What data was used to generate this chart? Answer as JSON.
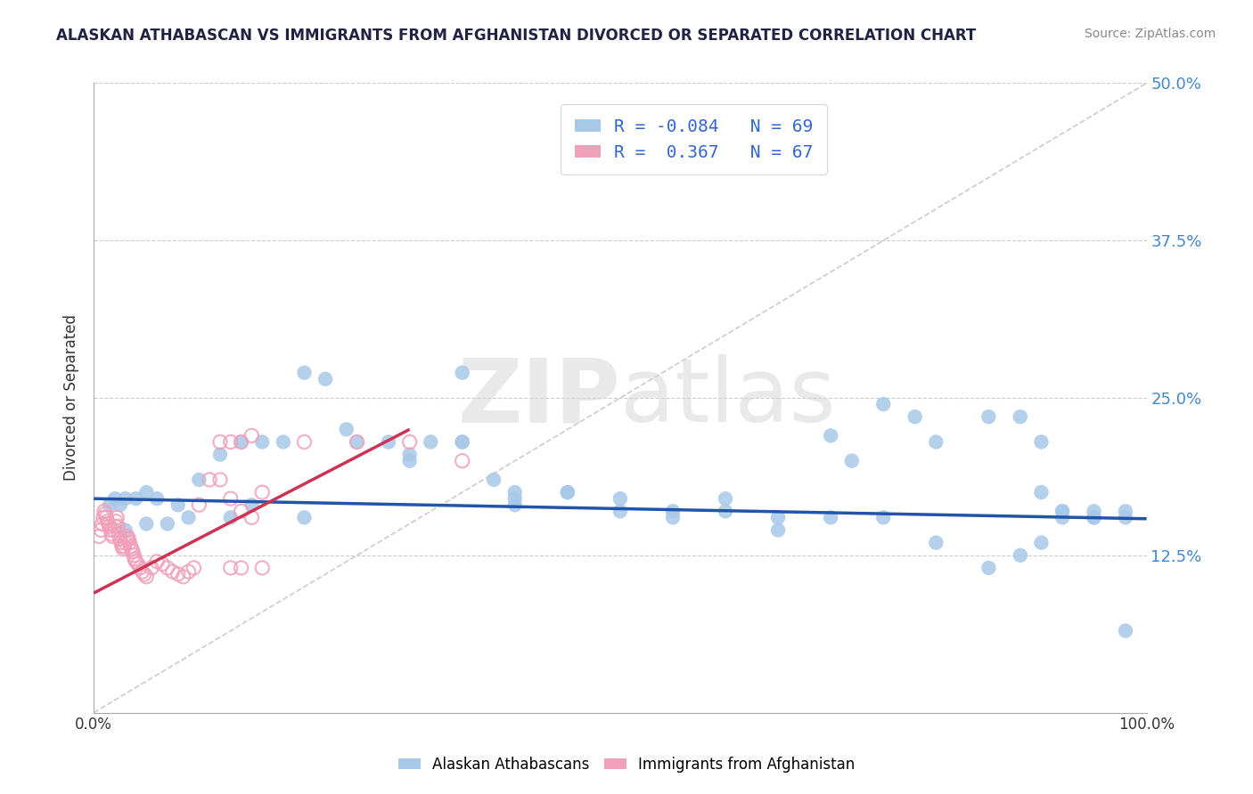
{
  "title": "ALASKAN ATHABASCAN VS IMMIGRANTS FROM AFGHANISTAN DIVORCED OR SEPARATED CORRELATION CHART",
  "source": "Source: ZipAtlas.com",
  "ylabel": "Divorced or Separated",
  "xlim": [
    0.0,
    1.0
  ],
  "ylim": [
    0.0,
    0.5
  ],
  "yticks": [
    0.0,
    0.125,
    0.25,
    0.375,
    0.5
  ],
  "ytick_labels": [
    "",
    "12.5%",
    "25.0%",
    "37.5%",
    "50.0%"
  ],
  "blue_scatter_x": [
    0.02,
    0.03,
    0.025,
    0.015,
    0.04,
    0.05,
    0.06,
    0.08,
    0.1,
    0.12,
    0.14,
    0.16,
    0.18,
    0.2,
    0.22,
    0.25,
    0.28,
    0.3,
    0.32,
    0.35,
    0.38,
    0.4,
    0.45,
    0.5,
    0.55,
    0.6,
    0.65,
    0.7,
    0.72,
    0.75,
    0.78,
    0.8,
    0.85,
    0.88,
    0.9,
    0.92,
    0.95,
    0.98,
    0.03,
    0.05,
    0.07,
    0.09,
    0.13,
    0.15,
    0.2,
    0.24,
    0.3,
    0.35,
    0.4,
    0.5,
    0.55,
    0.6,
    0.65,
    0.7,
    0.75,
    0.8,
    0.85,
    0.9,
    0.92,
    0.95,
    0.98,
    0.88,
    0.9,
    0.92,
    0.95,
    0.98,
    0.35,
    0.4,
    0.45
  ],
  "blue_scatter_y": [
    0.17,
    0.17,
    0.165,
    0.165,
    0.17,
    0.175,
    0.17,
    0.165,
    0.185,
    0.205,
    0.215,
    0.215,
    0.215,
    0.27,
    0.265,
    0.215,
    0.215,
    0.2,
    0.215,
    0.215,
    0.185,
    0.17,
    0.175,
    0.17,
    0.16,
    0.17,
    0.155,
    0.22,
    0.2,
    0.245,
    0.235,
    0.215,
    0.235,
    0.125,
    0.175,
    0.16,
    0.16,
    0.16,
    0.145,
    0.15,
    0.15,
    0.155,
    0.155,
    0.165,
    0.155,
    0.225,
    0.205,
    0.215,
    0.165,
    0.16,
    0.155,
    0.16,
    0.145,
    0.155,
    0.155,
    0.135,
    0.115,
    0.135,
    0.16,
    0.155,
    0.065,
    0.235,
    0.215,
    0.155,
    0.155,
    0.155,
    0.27,
    0.175,
    0.175
  ],
  "pink_scatter_x": [
    0.005,
    0.007,
    0.008,
    0.009,
    0.01,
    0.011,
    0.012,
    0.013,
    0.014,
    0.015,
    0.016,
    0.017,
    0.018,
    0.019,
    0.02,
    0.021,
    0.022,
    0.023,
    0.024,
    0.025,
    0.026,
    0.027,
    0.028,
    0.029,
    0.03,
    0.031,
    0.032,
    0.033,
    0.034,
    0.035,
    0.036,
    0.037,
    0.038,
    0.039,
    0.04,
    0.042,
    0.044,
    0.046,
    0.048,
    0.05,
    0.055,
    0.06,
    0.065,
    0.07,
    0.075,
    0.08,
    0.085,
    0.09,
    0.095,
    0.1,
    0.11,
    0.12,
    0.13,
    0.14,
    0.15,
    0.12,
    0.13,
    0.14,
    0.15,
    0.16,
    0.2,
    0.25,
    0.3,
    0.35,
    0.13,
    0.14,
    0.16
  ],
  "pink_scatter_y": [
    0.14,
    0.145,
    0.15,
    0.155,
    0.16,
    0.158,
    0.155,
    0.152,
    0.15,
    0.148,
    0.145,
    0.142,
    0.14,
    0.145,
    0.148,
    0.152,
    0.155,
    0.148,
    0.142,
    0.138,
    0.135,
    0.132,
    0.13,
    0.132,
    0.135,
    0.138,
    0.14,
    0.138,
    0.135,
    0.132,
    0.13,
    0.128,
    0.125,
    0.122,
    0.12,
    0.118,
    0.115,
    0.112,
    0.11,
    0.108,
    0.115,
    0.12,
    0.118,
    0.115,
    0.112,
    0.11,
    0.108,
    0.112,
    0.115,
    0.165,
    0.185,
    0.215,
    0.215,
    0.215,
    0.22,
    0.185,
    0.17,
    0.16,
    0.155,
    0.175,
    0.215,
    0.215,
    0.215,
    0.2,
    0.115,
    0.115,
    0.115
  ],
  "blue_line_x": [
    0.0,
    1.0
  ],
  "blue_line_y": [
    0.17,
    0.154
  ],
  "pink_line_x": [
    0.0,
    0.3
  ],
  "pink_line_y": [
    0.095,
    0.225
  ],
  "diagonal_line_x": [
    0.0,
    1.0
  ],
  "diagonal_line_y": [
    0.0,
    0.5
  ],
  "watermark_zip": "ZIP",
  "watermark_atlas": "atlas",
  "bg_color": "#ffffff",
  "scatter_blue_color": "#a8c8e8",
  "scatter_pink_color": "#f0a0b8",
  "trend_blue_color": "#2255aa",
  "trend_pink_color": "#cc3355",
  "diagonal_color": "#cccccc",
  "grid_color": "#cccccc",
  "right_tick_color": "#4488cc",
  "legend_text_color": "#3366cc"
}
